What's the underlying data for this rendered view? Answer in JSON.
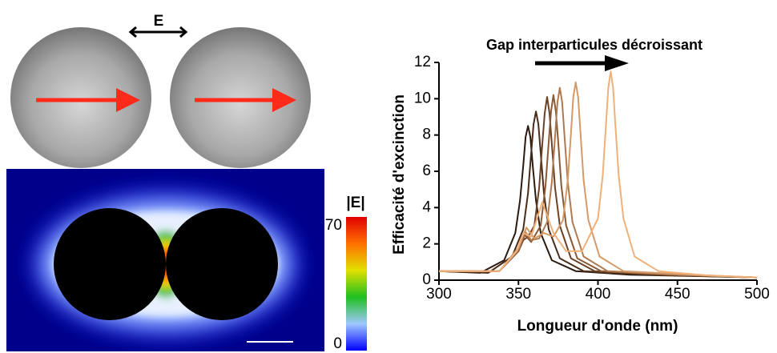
{
  "figure_labels": {
    "field_direction": "E",
    "colorbar_title": "|E|",
    "colorbar_max": 70,
    "colorbar_min": 0
  },
  "chart_data": {
    "type": "line",
    "annotation": "Gap interparticules décroissant",
    "xlabel": "Longueur d'onde (nm)",
    "ylabel": "Efficacité d'excinction",
    "xlim": [
      300,
      500
    ],
    "xticks": [
      300,
      350,
      400,
      450,
      500
    ],
    "ylim": [
      0,
      12
    ],
    "yticks": [
      0,
      2,
      4,
      6,
      8,
      10,
      12
    ],
    "series": [
      {
        "color": "#2a1a10",
        "x": [
          300,
          326,
          341,
          348,
          351,
          353,
          354.5,
          356,
          357.5,
          359,
          361,
          364,
          371,
          386,
          420,
          500
        ],
        "values": [
          0.5,
          0.4,
          1.1,
          2.6,
          4.4,
          6.3,
          7.9,
          8.5,
          7.9,
          6.3,
          4.4,
          2.6,
          1.1,
          0.5,
          0.3,
          0.15
        ]
      },
      {
        "color": "#4a2c18",
        "x": [
          300,
          331,
          346,
          353,
          356,
          358,
          359.5,
          361,
          362.5,
          364,
          366,
          369,
          376,
          391,
          430,
          500
        ],
        "values": [
          0.5,
          0.4,
          1.3,
          2.8,
          4.8,
          7.0,
          8.6,
          9.3,
          8.6,
          7.0,
          4.8,
          2.8,
          1.2,
          0.5,
          0.3,
          0.15
        ]
      },
      {
        "color": "#6b4226",
        "x": [
          300,
          338,
          350,
          353,
          356,
          360,
          363,
          365,
          366.5,
          368,
          369.5,
          371,
          373,
          376,
          383,
          398,
          440,
          500
        ],
        "values": [
          0.5,
          0.5,
          1.6,
          2.2,
          2.4,
          3.0,
          5.1,
          7.5,
          9.2,
          10.1,
          9.2,
          7.5,
          5.1,
          3.0,
          1.2,
          0.5,
          0.3,
          0.15
        ]
      },
      {
        "color": "#8a5a35",
        "x": [
          300,
          338,
          350,
          354,
          358,
          364,
          367,
          369,
          370.5,
          372,
          373.5,
          375,
          377,
          380,
          387,
          402,
          445,
          500
        ],
        "values": [
          0.5,
          0.5,
          1.6,
          2.5,
          2.1,
          3.0,
          5.2,
          7.6,
          9.3,
          10.2,
          9.3,
          7.6,
          5.2,
          3.0,
          1.2,
          0.5,
          0.3,
          0.15
        ]
      },
      {
        "color": "#b07a4e",
        "x": [
          300,
          338,
          350,
          354,
          358,
          363,
          368,
          371,
          373,
          374.5,
          376,
          377.5,
          379,
          381,
          384,
          391,
          406,
          450,
          500
        ],
        "values": [
          0.5,
          0.5,
          1.7,
          2.7,
          2.2,
          2.3,
          3.2,
          5.4,
          7.9,
          9.8,
          10.6,
          9.8,
          7.9,
          5.4,
          3.2,
          1.3,
          0.5,
          0.3,
          0.15
        ]
      },
      {
        "color": "#d49a68",
        "x": [
          300,
          338,
          350,
          355,
          360,
          366,
          372,
          378,
          381,
          383,
          384.5,
          386,
          387.5,
          389,
          391,
          394,
          401,
          416,
          460,
          500
        ],
        "values": [
          0.5,
          0.5,
          1.8,
          2.9,
          2.3,
          2.6,
          2.4,
          3.3,
          5.5,
          8.1,
          10.1,
          10.9,
          10.1,
          8.1,
          5.5,
          3.3,
          1.3,
          0.5,
          0.3,
          0.15
        ]
      },
      {
        "color": "#f0b07a",
        "x": [
          300,
          338,
          349,
          353,
          358,
          365,
          372,
          380,
          390,
          400,
          403,
          405,
          406.5,
          408,
          409.5,
          411,
          413,
          416,
          423,
          438,
          470,
          500
        ],
        "values": [
          0.5,
          0.5,
          1.6,
          2.6,
          2.4,
          4.3,
          2.6,
          1.6,
          1.6,
          3.4,
          5.8,
          8.5,
          10.6,
          11.5,
          10.6,
          8.5,
          5.8,
          3.4,
          1.3,
          0.5,
          0.25,
          0.15
        ]
      }
    ]
  }
}
